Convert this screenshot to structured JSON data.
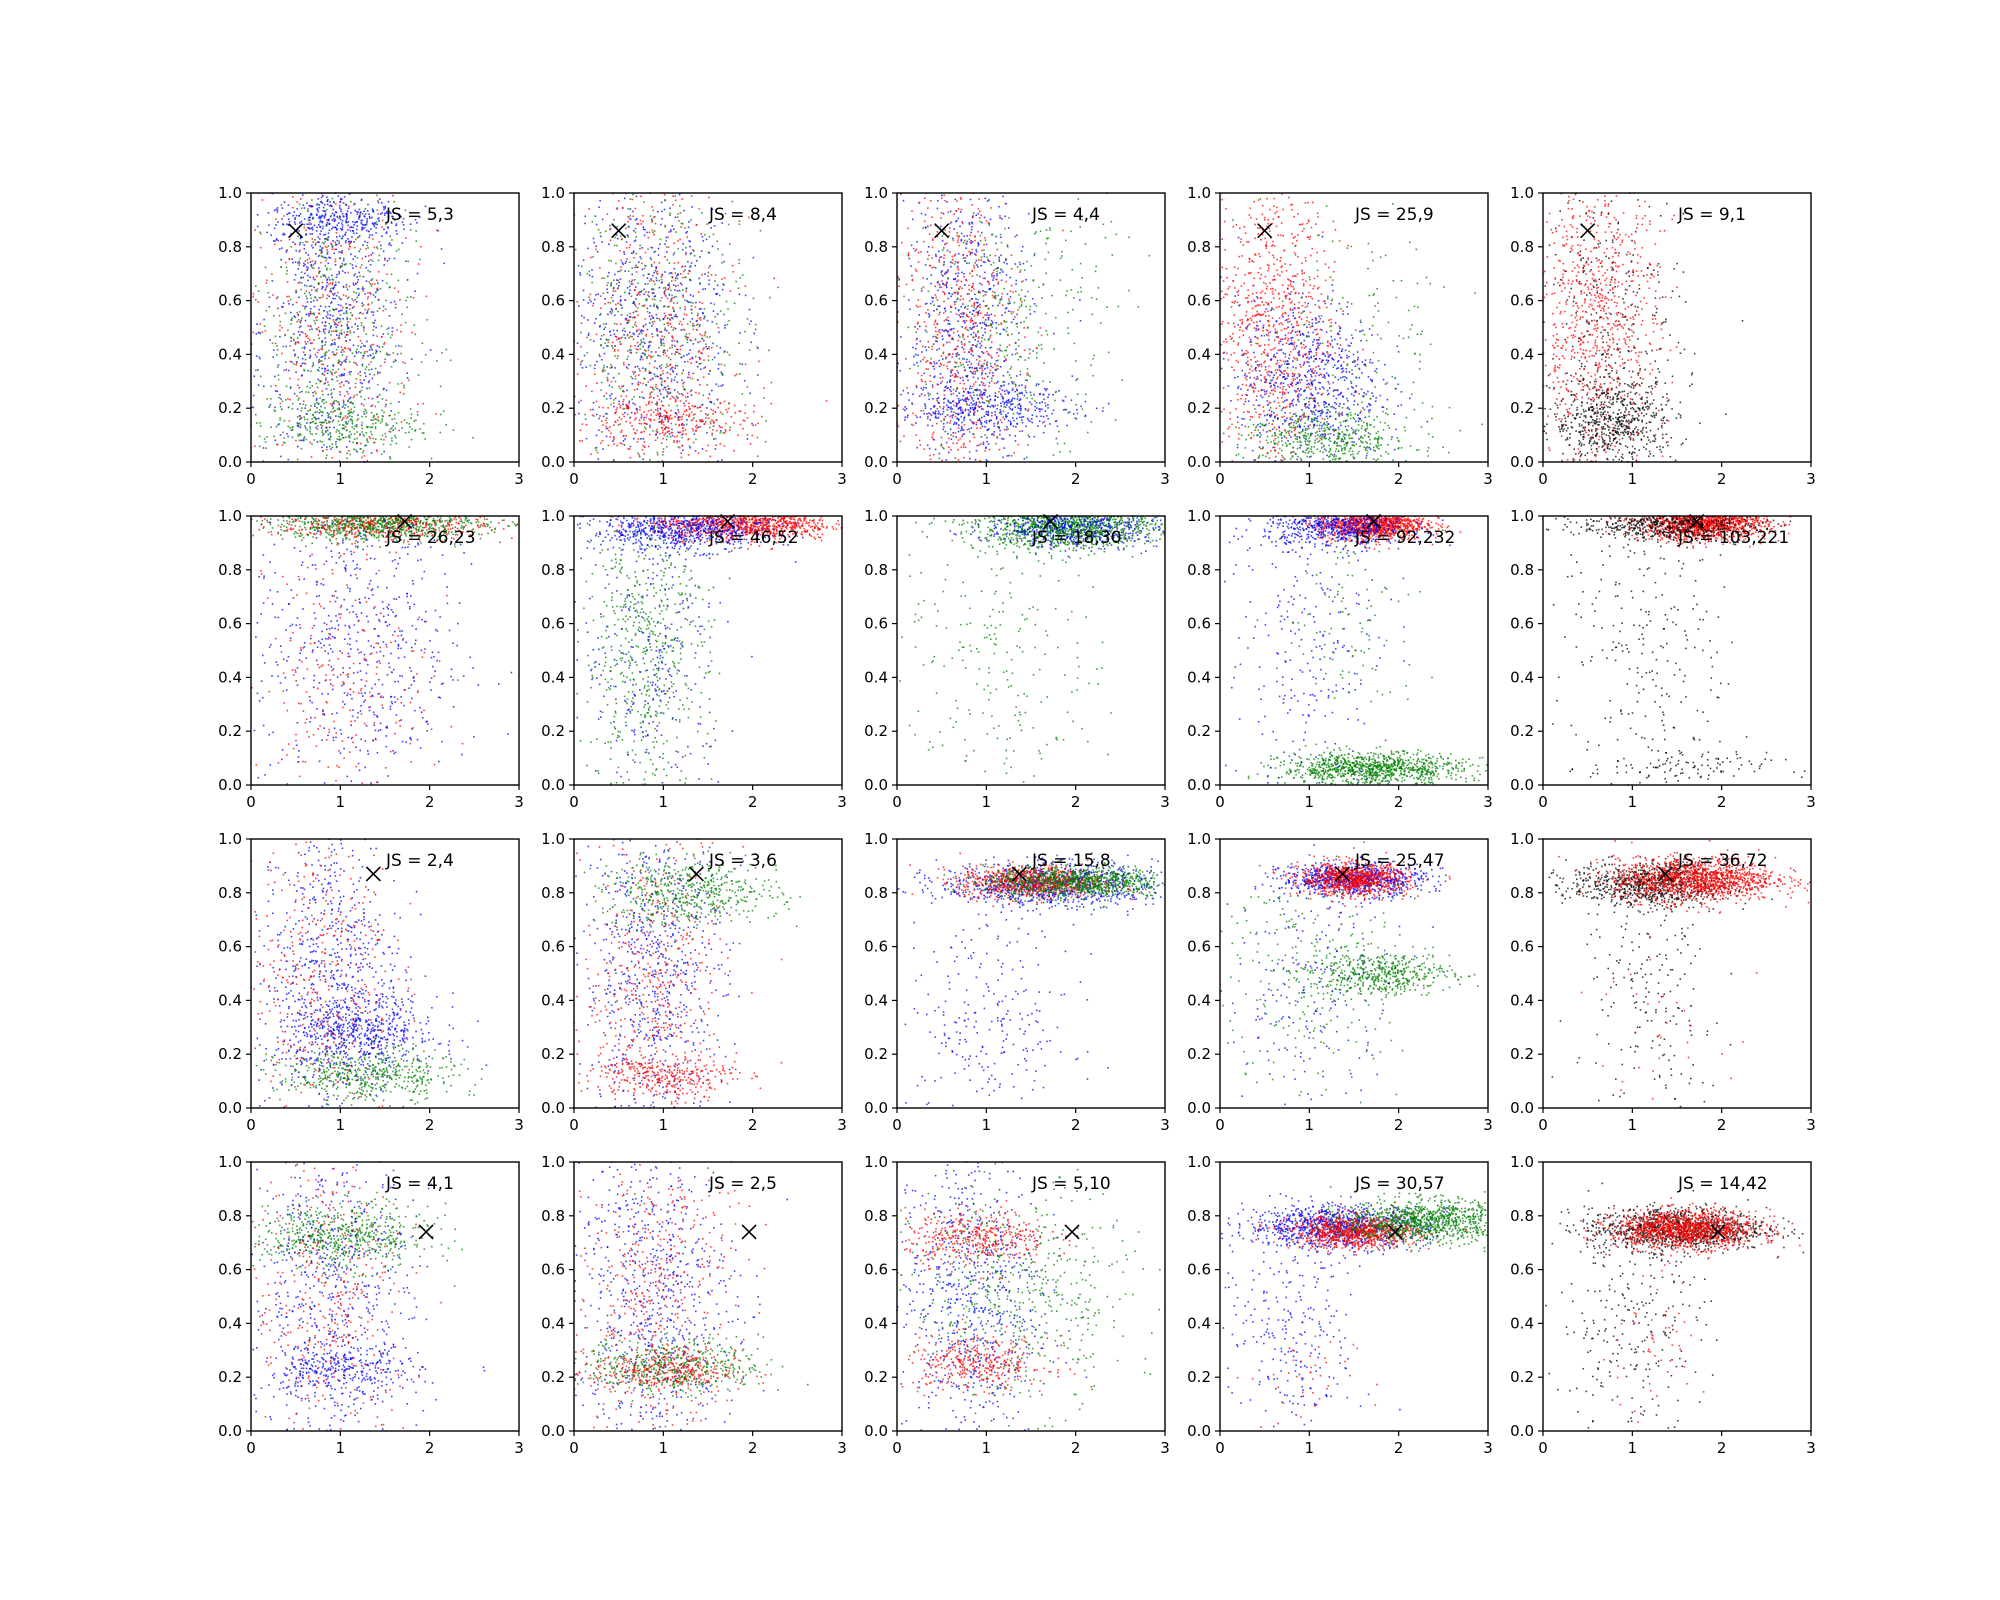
{
  "chart_data": {
    "type": "scatter",
    "grid": false,
    "layout_rows": 4,
    "layout_cols": 5,
    "xlim": [
      0,
      3
    ],
    "ylim": [
      0,
      1
    ],
    "xticks": [
      "0",
      "1",
      "2",
      "3"
    ],
    "yticks": [
      "0.0",
      "0.2",
      "0.4",
      "0.6",
      "0.8",
      "1.0"
    ],
    "colors": {
      "blue": "#0000ff",
      "red": "#ff0000",
      "green": "#008000",
      "black": "#000000"
    },
    "rows": [
      {
        "marker": {
          "x": 0.5,
          "y": 0.86
        },
        "panels": [
          {
            "label": "JS = 5,3",
            "clusters": [
              {
                "color": "blue",
                "cx": 0.9,
                "cy": 0.5,
                "sx": 0.4,
                "sy": 0.3,
                "n": 700
              },
              {
                "color": "red",
                "cx": 0.9,
                "cy": 0.5,
                "sx": 0.45,
                "sy": 0.3,
                "n": 450
              },
              {
                "color": "green",
                "cx": 0.9,
                "cy": 0.5,
                "sx": 0.45,
                "sy": 0.3,
                "n": 500
              },
              {
                "color": "blue",
                "cx": 1.0,
                "cy": 0.9,
                "sx": 0.4,
                "sy": 0.05,
                "n": 300
              },
              {
                "color": "green",
                "cx": 1.0,
                "cy": 0.14,
                "sx": 0.45,
                "sy": 0.05,
                "n": 300
              }
            ]
          },
          {
            "label": "JS = 8,4",
            "clusters": [
              {
                "color": "blue",
                "cx": 0.9,
                "cy": 0.5,
                "sx": 0.45,
                "sy": 0.3,
                "n": 700
              },
              {
                "color": "red",
                "cx": 0.9,
                "cy": 0.5,
                "sx": 0.45,
                "sy": 0.3,
                "n": 500
              },
              {
                "color": "green",
                "cx": 1.0,
                "cy": 0.5,
                "sx": 0.5,
                "sy": 0.3,
                "n": 500
              },
              {
                "color": "red",
                "cx": 1.0,
                "cy": 0.15,
                "sx": 0.5,
                "sy": 0.05,
                "n": 300
              }
            ]
          },
          {
            "label": "JS = 4,4",
            "clusters": [
              {
                "color": "blue",
                "cx": 0.8,
                "cy": 0.5,
                "sx": 0.35,
                "sy": 0.3,
                "n": 700
              },
              {
                "color": "red",
                "cx": 0.7,
                "cy": 0.5,
                "sx": 0.35,
                "sy": 0.3,
                "n": 600
              },
              {
                "color": "green",
                "cx": 1.3,
                "cy": 0.5,
                "sx": 0.55,
                "sy": 0.3,
                "n": 400
              },
              {
                "color": "blue",
                "cx": 1.0,
                "cy": 0.2,
                "sx": 0.5,
                "sy": 0.05,
                "n": 400
              }
            ]
          },
          {
            "label": "JS = 25,9",
            "clusters": [
              {
                "color": "red",
                "cx": 0.6,
                "cy": 0.5,
                "sx": 0.35,
                "sy": 0.3,
                "n": 900
              },
              {
                "color": "blue",
                "cx": 1.0,
                "cy": 0.3,
                "sx": 0.4,
                "sy": 0.15,
                "n": 700
              },
              {
                "color": "green",
                "cx": 1.2,
                "cy": 0.08,
                "sx": 0.5,
                "sy": 0.06,
                "n": 500
              },
              {
                "color": "green",
                "cx": 1.5,
                "cy": 0.5,
                "sx": 0.6,
                "sy": 0.25,
                "n": 150
              }
            ]
          },
          {
            "label": "JS = 9,1",
            "clusters": [
              {
                "color": "red",
                "cx": 0.6,
                "cy": 0.5,
                "sx": 0.35,
                "sy": 0.3,
                "n": 900
              },
              {
                "color": "black",
                "cx": 0.8,
                "cy": 0.15,
                "sx": 0.35,
                "sy": 0.08,
                "n": 600
              },
              {
                "color": "black",
                "cx": 0.8,
                "cy": 0.5,
                "sx": 0.4,
                "sy": 0.3,
                "n": 300
              }
            ]
          }
        ]
      },
      {
        "marker": {
          "x": 1.72,
          "y": 0.98
        },
        "panels": [
          {
            "label": "JS = 26,23",
            "clusters": [
              {
                "color": "green",
                "cx": 1.4,
                "cy": 0.97,
                "sx": 0.6,
                "sy": 0.03,
                "n": 900
              },
              {
                "color": "red",
                "cx": 1.5,
                "cy": 0.97,
                "sx": 0.6,
                "sy": 0.03,
                "n": 400
              },
              {
                "color": "blue",
                "cx": 1.2,
                "cy": 0.5,
                "sx": 0.6,
                "sy": 0.3,
                "n": 600
              },
              {
                "color": "red",
                "cx": 1.0,
                "cy": 0.4,
                "sx": 0.5,
                "sy": 0.3,
                "n": 250
              }
            ]
          },
          {
            "label": "JS = 46,52",
            "clusters": [
              {
                "color": "red",
                "cx": 1.9,
                "cy": 0.97,
                "sx": 0.5,
                "sy": 0.03,
                "n": 1000
              },
              {
                "color": "blue",
                "cx": 1.2,
                "cy": 0.95,
                "sx": 0.5,
                "sy": 0.04,
                "n": 700
              },
              {
                "color": "green",
                "cx": 0.8,
                "cy": 0.5,
                "sx": 0.35,
                "sy": 0.3,
                "n": 600
              },
              {
                "color": "blue",
                "cx": 0.9,
                "cy": 0.5,
                "sx": 0.4,
                "sy": 0.3,
                "n": 300
              }
            ]
          },
          {
            "label": "JS = 18,30",
            "clusters": [
              {
                "color": "green",
                "cx": 1.9,
                "cy": 0.96,
                "sx": 0.5,
                "sy": 0.04,
                "n": 1200
              },
              {
                "color": "blue",
                "cx": 2.0,
                "cy": 0.96,
                "sx": 0.5,
                "sy": 0.04,
                "n": 500
              },
              {
                "color": "green",
                "cx": 1.2,
                "cy": 0.5,
                "sx": 0.6,
                "sy": 0.3,
                "n": 250
              }
            ]
          },
          {
            "label": "JS = 92,232",
            "clusters": [
              {
                "color": "red",
                "cx": 1.7,
                "cy": 0.97,
                "sx": 0.3,
                "sy": 0.03,
                "n": 1200
              },
              {
                "color": "blue",
                "cx": 1.3,
                "cy": 0.96,
                "sx": 0.4,
                "sy": 0.04,
                "n": 600
              },
              {
                "color": "green",
                "cx": 1.7,
                "cy": 0.06,
                "sx": 0.5,
                "sy": 0.03,
                "n": 1000
              },
              {
                "color": "blue",
                "cx": 1.0,
                "cy": 0.5,
                "sx": 0.5,
                "sy": 0.3,
                "n": 250
              },
              {
                "color": "green",
                "cx": 1.5,
                "cy": 0.6,
                "sx": 0.4,
                "sy": 0.2,
                "n": 100
              }
            ]
          },
          {
            "label": "JS = 103,221",
            "clusters": [
              {
                "color": "red",
                "cx": 1.8,
                "cy": 0.97,
                "sx": 0.35,
                "sy": 0.03,
                "n": 1300
              },
              {
                "color": "black",
                "cx": 1.4,
                "cy": 0.97,
                "sx": 0.5,
                "sy": 0.03,
                "n": 600
              },
              {
                "color": "black",
                "cx": 1.2,
                "cy": 0.5,
                "sx": 0.5,
                "sy": 0.3,
                "n": 250
              },
              {
                "color": "black",
                "cx": 1.5,
                "cy": 0.06,
                "sx": 0.5,
                "sy": 0.03,
                "n": 100
              }
            ]
          }
        ]
      },
      {
        "marker": {
          "x": 1.37,
          "y": 0.87
        },
        "panels": [
          {
            "label": "JS = 2,4",
            "clusters": [
              {
                "color": "blue",
                "cx": 0.9,
                "cy": 0.5,
                "sx": 0.4,
                "sy": 0.3,
                "n": 700
              },
              {
                "color": "red",
                "cx": 0.8,
                "cy": 0.5,
                "sx": 0.4,
                "sy": 0.3,
                "n": 400
              },
              {
                "color": "blue",
                "cx": 1.2,
                "cy": 0.28,
                "sx": 0.45,
                "sy": 0.07,
                "n": 500
              },
              {
                "color": "green",
                "cx": 1.3,
                "cy": 0.12,
                "sx": 0.5,
                "sy": 0.05,
                "n": 500
              }
            ]
          },
          {
            "label": "JS = 3,6",
            "clusters": [
              {
                "color": "blue",
                "cx": 0.9,
                "cy": 0.5,
                "sx": 0.4,
                "sy": 0.3,
                "n": 700
              },
              {
                "color": "red",
                "cx": 0.9,
                "cy": 0.45,
                "sx": 0.4,
                "sy": 0.3,
                "n": 500
              },
              {
                "color": "green",
                "cx": 1.3,
                "cy": 0.8,
                "sx": 0.5,
                "sy": 0.06,
                "n": 500
              },
              {
                "color": "red",
                "cx": 1.0,
                "cy": 0.12,
                "sx": 0.4,
                "sy": 0.04,
                "n": 300
              }
            ]
          },
          {
            "label": "JS = 15,8",
            "clusters": [
              {
                "color": "blue",
                "cx": 1.7,
                "cy": 0.83,
                "sx": 0.6,
                "sy": 0.04,
                "n": 900
              },
              {
                "color": "red",
                "cx": 1.5,
                "cy": 0.84,
                "sx": 0.4,
                "sy": 0.03,
                "n": 800
              },
              {
                "color": "green",
                "cx": 2.0,
                "cy": 0.84,
                "sx": 0.5,
                "sy": 0.03,
                "n": 900
              },
              {
                "color": "blue",
                "cx": 1.0,
                "cy": 0.3,
                "sx": 0.5,
                "sy": 0.2,
                "n": 250
              }
            ]
          },
          {
            "label": "JS = 25,47",
            "clusters": [
              {
                "color": "blue",
                "cx": 1.5,
                "cy": 0.85,
                "sx": 0.4,
                "sy": 0.03,
                "n": 800
              },
              {
                "color": "red",
                "cx": 1.5,
                "cy": 0.85,
                "sx": 0.3,
                "sy": 0.03,
                "n": 900
              },
              {
                "color": "green",
                "cx": 1.8,
                "cy": 0.5,
                "sx": 0.4,
                "sy": 0.04,
                "n": 500
              },
              {
                "color": "green",
                "cx": 1.0,
                "cy": 0.5,
                "sx": 0.5,
                "sy": 0.25,
                "n": 250
              },
              {
                "color": "blue",
                "cx": 1.0,
                "cy": 0.45,
                "sx": 0.5,
                "sy": 0.25,
                "n": 200
              }
            ]
          },
          {
            "label": "JS = 36,72",
            "clusters": [
              {
                "color": "black",
                "cx": 1.2,
                "cy": 0.83,
                "sx": 0.45,
                "sy": 0.04,
                "n": 800
              },
              {
                "color": "red",
                "cx": 1.7,
                "cy": 0.85,
                "sx": 0.45,
                "sy": 0.04,
                "n": 1300
              },
              {
                "color": "black",
                "cx": 1.2,
                "cy": 0.4,
                "sx": 0.4,
                "sy": 0.25,
                "n": 200
              },
              {
                "color": "red",
                "cx": 1.2,
                "cy": 0.35,
                "sx": 0.4,
                "sy": 0.25,
                "n": 50
              }
            ]
          }
        ]
      },
      {
        "marker": {
          "x": 1.96,
          "y": 0.74
        },
        "panels": [
          {
            "label": "JS = 4,1",
            "clusters": [
              {
                "color": "green",
                "cx": 1.0,
                "cy": 0.72,
                "sx": 0.5,
                "sy": 0.06,
                "n": 600
              },
              {
                "color": "blue",
                "cx": 0.9,
                "cy": 0.5,
                "sx": 0.45,
                "sy": 0.3,
                "n": 600
              },
              {
                "color": "red",
                "cx": 0.9,
                "cy": 0.5,
                "sx": 0.45,
                "sy": 0.3,
                "n": 400
              },
              {
                "color": "blue",
                "cx": 1.0,
                "cy": 0.22,
                "sx": 0.45,
                "sy": 0.05,
                "n": 300
              }
            ]
          },
          {
            "label": "JS = 2,5",
            "clusters": [
              {
                "color": "blue",
                "cx": 0.9,
                "cy": 0.5,
                "sx": 0.45,
                "sy": 0.3,
                "n": 700
              },
              {
                "color": "red",
                "cx": 0.9,
                "cy": 0.5,
                "sx": 0.45,
                "sy": 0.3,
                "n": 500
              },
              {
                "color": "green",
                "cx": 1.1,
                "cy": 0.24,
                "sx": 0.5,
                "sy": 0.05,
                "n": 500
              },
              {
                "color": "red",
                "cx": 1.0,
                "cy": 0.22,
                "sx": 0.4,
                "sy": 0.04,
                "n": 300
              }
            ]
          },
          {
            "label": "JS = 5,10",
            "clusters": [
              {
                "color": "blue",
                "cx": 0.8,
                "cy": 0.5,
                "sx": 0.4,
                "sy": 0.3,
                "n": 700
              },
              {
                "color": "red",
                "cx": 0.9,
                "cy": 0.72,
                "sx": 0.4,
                "sy": 0.05,
                "n": 400
              },
              {
                "color": "red",
                "cx": 0.9,
                "cy": 0.25,
                "sx": 0.4,
                "sy": 0.05,
                "n": 350
              },
              {
                "color": "green",
                "cx": 1.4,
                "cy": 0.5,
                "sx": 0.6,
                "sy": 0.2,
                "n": 500
              }
            ]
          },
          {
            "label": "JS = 30,57",
            "clusters": [
              {
                "color": "blue",
                "cx": 1.3,
                "cy": 0.76,
                "sx": 0.5,
                "sy": 0.04,
                "n": 900
              },
              {
                "color": "red",
                "cx": 1.5,
                "cy": 0.74,
                "sx": 0.35,
                "sy": 0.03,
                "n": 900
              },
              {
                "color": "green",
                "cx": 2.3,
                "cy": 0.78,
                "sx": 0.45,
                "sy": 0.04,
                "n": 1000
              },
              {
                "color": "blue",
                "cx": 0.8,
                "cy": 0.35,
                "sx": 0.4,
                "sy": 0.2,
                "n": 250
              },
              {
                "color": "red",
                "cx": 0.9,
                "cy": 0.2,
                "sx": 0.3,
                "sy": 0.1,
                "n": 40
              }
            ]
          },
          {
            "label": "JS = 14,42",
            "clusters": [
              {
                "color": "black",
                "cx": 1.5,
                "cy": 0.75,
                "sx": 0.5,
                "sy": 0.04,
                "n": 1000
              },
              {
                "color": "red",
                "cx": 1.6,
                "cy": 0.75,
                "sx": 0.4,
                "sy": 0.035,
                "n": 1300
              },
              {
                "color": "black",
                "cx": 1.0,
                "cy": 0.4,
                "sx": 0.4,
                "sy": 0.22,
                "n": 250
              },
              {
                "color": "red",
                "cx": 1.2,
                "cy": 0.3,
                "sx": 0.3,
                "sy": 0.15,
                "n": 50
              }
            ]
          }
        ]
      }
    ]
  }
}
